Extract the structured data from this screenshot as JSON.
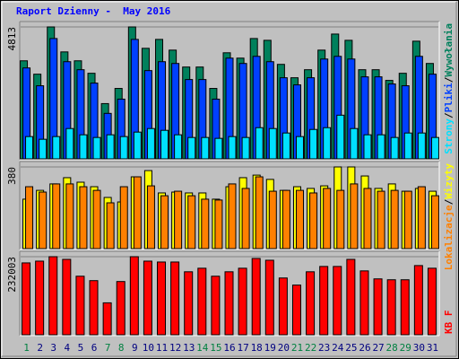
{
  "chart_data": [
    {
      "type": "bar",
      "title": "Raport Dzienny -  May 2016",
      "ylim": [
        0,
        4813
      ],
      "yticks": [
        4813
      ],
      "legend_separator": "/",
      "series": [
        {
          "name": "Wywołania",
          "color": "#00805c",
          "values": [
            3577,
            3089,
            4813,
            3902,
            3577,
            3122,
            2016,
            2569,
            4813,
            4033,
            4358,
            3967,
            3350,
            3350,
            2569,
            3870,
            3675,
            4390,
            4325,
            3447,
            2959,
            3252,
            3967,
            4553,
            4325,
            3252,
            3252,
            2862,
            3122,
            4293,
            3480
          ]
        },
        {
          "name": "Pliki",
          "color": "#0040ff",
          "values": [
            3317,
            2667,
            4390,
            3545,
            3252,
            2764,
            1659,
            2179,
            4358,
            3220,
            3545,
            3480,
            2894,
            2894,
            2179,
            3675,
            3480,
            3740,
            3545,
            2959,
            2699,
            2959,
            3642,
            3740,
            3642,
            2992,
            2992,
            2732,
            2667,
            3740,
            3089
          ]
        },
        {
          "name": "Strony",
          "color": "#00e0ff",
          "values": [
            813,
            715,
            813,
            1106,
            878,
            780,
            878,
            813,
            976,
            1106,
            1041,
            878,
            780,
            780,
            748,
            813,
            780,
            1138,
            1106,
            943,
            813,
            1073,
            1138,
            1593,
            1106,
            878,
            878,
            780,
            943,
            943,
            780
          ]
        }
      ]
    },
    {
      "type": "bar",
      "ylim": [
        0,
        380
      ],
      "yticks": [
        380
      ],
      "legend_separator": "/",
      "series": [
        {
          "name": "Wizyty",
          "color": "#ffff00",
          "values": [
            230,
            271,
            301,
            330,
            309,
            288,
            238,
            217,
            334,
            363,
            259,
            263,
            259,
            259,
            230,
            288,
            330,
            342,
            322,
            271,
            288,
            280,
            292,
            380,
            380,
            338,
            280,
            301,
            267,
            280,
            267
          ]
        },
        {
          "name": "Lokalizacje",
          "color": "#ff8000",
          "values": [
            288,
            263,
            301,
            301,
            288,
            271,
            213,
            288,
            334,
            292,
            246,
            267,
            246,
            230,
            226,
            301,
            280,
            334,
            267,
            271,
            271,
            259,
            280,
            271,
            301,
            280,
            267,
            271,
            267,
            288,
            246
          ]
        }
      ]
    },
    {
      "type": "bar",
      "ylim": [
        0,
        232003
      ],
      "yticks": [
        232003
      ],
      "categories": [
        "1",
        "2",
        "3",
        "4",
        "5",
        "6",
        "7",
        "8",
        "9",
        "10",
        "11",
        "12",
        "13",
        "14",
        "15",
        "16",
        "17",
        "18",
        "19",
        "20",
        "21",
        "22",
        "23",
        "24",
        "25",
        "26",
        "27",
        "28",
        "29",
        "30",
        "31"
      ],
      "label_colors": [
        "#008040",
        "#000080",
        "#000080",
        "#000080",
        "#000080",
        "#000080",
        "#008040",
        "#008040",
        "#000080",
        "#000080",
        "#000080",
        "#000080",
        "#000080",
        "#008040",
        "#008040",
        "#000080",
        "#000080",
        "#000080",
        "#000080",
        "#000080",
        "#008040",
        "#008040",
        "#000080",
        "#000080",
        "#000080",
        "#000080",
        "#000080",
        "#008040",
        "#008040",
        "#000080",
        "#000080"
      ],
      "series": [
        {
          "name": "KB F",
          "color": "#ff0000",
          "values": [
            213516,
            218788,
            232003,
            224060,
            173976,
            160796,
            94896,
            158160,
            232003,
            218788,
            216152,
            216152,
            187156,
            197700,
            173976,
            187156,
            197700,
            226696,
            221424,
            168704,
            147616,
            187156,
            202972,
            202972,
            224060,
            189792,
            166068,
            163432,
            163432,
            205608,
            197700
          ]
        }
      ]
    }
  ]
}
